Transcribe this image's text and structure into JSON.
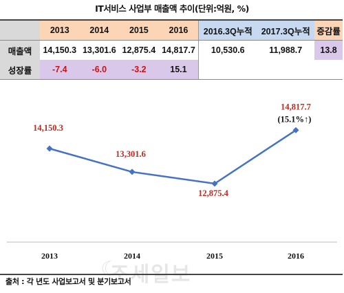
{
  "title": "IT서비스 사업부 매출액 추이(단위:억원, %)",
  "table": {
    "headers": [
      "2013",
      "2014",
      "2015",
      "2016",
      "2016.3Q누적",
      "2017.3Q누적",
      "증감률"
    ],
    "rows": [
      {
        "label": "매출액",
        "cells": [
          "14,150.3",
          "13,301.6",
          "12,875.4",
          "14,817.7",
          "10,530.6",
          "11,988.7",
          "13.8"
        ]
      },
      {
        "label": "성장률",
        "cells": [
          "-7.4",
          "-6.0",
          "-3.2",
          "15.1"
        ]
      }
    ]
  },
  "chart_data": {
    "type": "line",
    "categories": [
      "2013",
      "2014",
      "2015",
      "2016"
    ],
    "values": [
      14150.3,
      13301.6,
      12875.4,
      14817.7
    ],
    "data_labels": [
      "14,150.3",
      "13,301.6",
      "12,875.4",
      "14,817.7"
    ],
    "annotation": "(15.1%↑)",
    "ylim": [
      12500,
      15000
    ],
    "line_color": "#4472c4",
    "label_color": "#c0281c"
  },
  "footer": "출처 : 각 년도 사업보고서 및 분기보고서",
  "watermark": "조세일보"
}
